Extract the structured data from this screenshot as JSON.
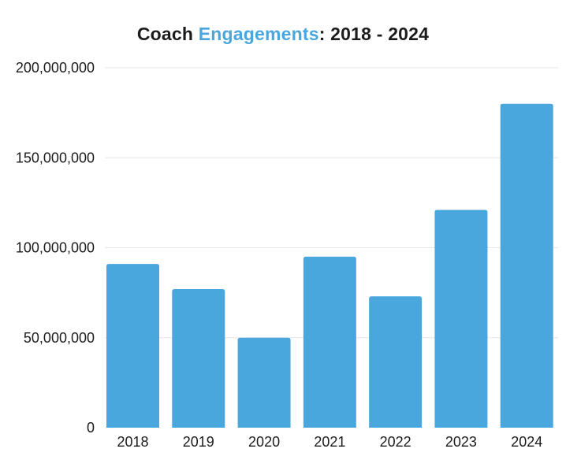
{
  "chart_data": {
    "type": "bar",
    "title_parts": {
      "prefix": "Coach ",
      "highlight": "Engagements",
      "suffix": ": 2018 - 2024"
    },
    "categories": [
      "2018",
      "2019",
      "2020",
      "2021",
      "2022",
      "2023",
      "2024"
    ],
    "values": [
      91000000,
      77000000,
      50000000,
      95000000,
      73000000,
      121000000,
      180000000
    ],
    "ylim": [
      0,
      200000000
    ],
    "yticks": [
      0,
      50000000,
      100000000,
      150000000,
      200000000
    ],
    "ytick_labels": [
      "0",
      "50,000,000",
      "100,000,000",
      "150,000,000",
      "200,000,000"
    ],
    "grid": true,
    "colors": {
      "bar": "#4aa7dd",
      "highlight": "#4aa7dd",
      "text": "#1c1c1c",
      "grid": "#e6e6e6"
    }
  }
}
